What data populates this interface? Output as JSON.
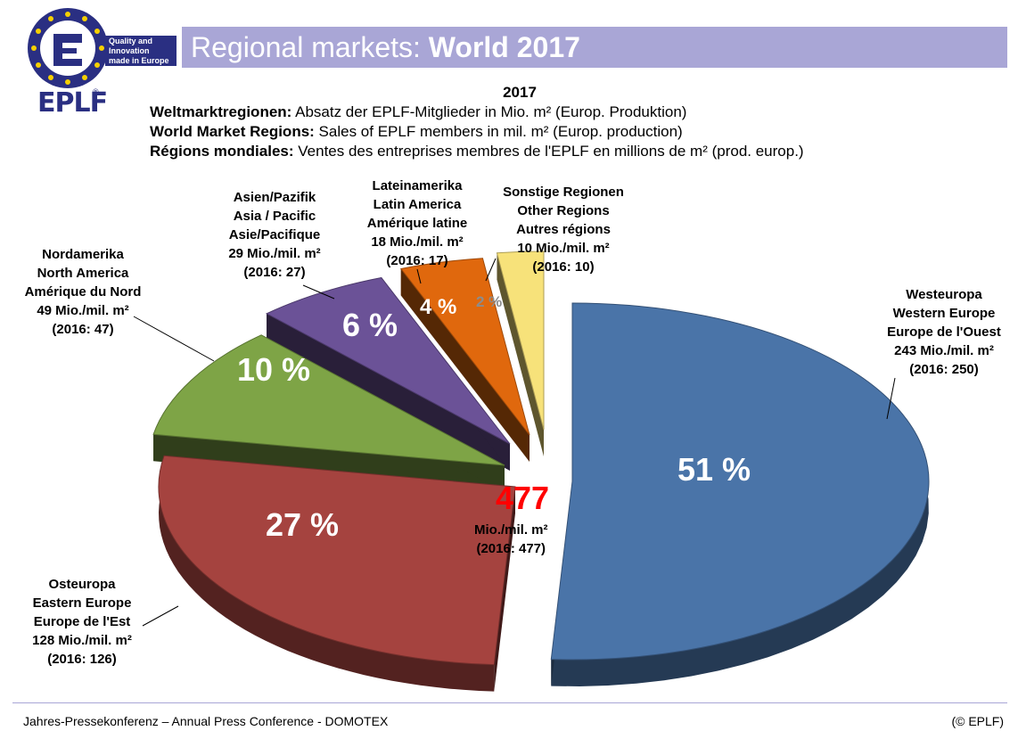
{
  "header": {
    "title_regular": "Regional markets: ",
    "title_bold": "World 2017",
    "tagline": [
      "Quality and",
      "Innovation",
      "made in Europe"
    ],
    "logo_text": "EPLF"
  },
  "subtitles": {
    "year": "2017",
    "de_bold": "Weltmarktregionen:",
    "de_text": " Absatz der EPLF-Mitglieder in Mio. m² (Europ. Produktion)",
    "en_bold": "World Market Regions:",
    "en_text": " Sales of EPLF members in mil. m² (Europ. production)",
    "fr_bold": "Régions mondiales:",
    "fr_text": " Ventes des entreprises membres de l'EPLF en millions de m² (prod. europ.)"
  },
  "chart_data": {
    "type": "pie",
    "title": "2017",
    "unit": "Mio./mil. m²",
    "total": {
      "value": "477",
      "unit": "Mio./mil. m²",
      "previous": "(2016: 477)"
    },
    "slices": [
      {
        "label": [
          "Westeuropa",
          "Western Europe",
          "Europe de l'Ouest"
        ],
        "value": 243,
        "value_text": "243 Mio./mil. m²",
        "previous": "(2016: 250)",
        "percent": "51 %",
        "color": "#4a74a8"
      },
      {
        "label": [
          "Osteuropa",
          "Eastern Europe",
          "Europe de l'Est"
        ],
        "value": 128,
        "value_text": "128 Mio./mil. m²",
        "previous": "(2016: 126)",
        "percent": "27 %",
        "color": "#a5433f"
      },
      {
        "label": [
          "Nordamerika",
          "North America",
          "Amérique du Nord"
        ],
        "value": 49,
        "value_text": "49 Mio./mil. m²",
        "previous": "(2016: 47)",
        "percent": "10 %",
        "color": "#7ea446"
      },
      {
        "label": [
          "Asien/Pazifik",
          "Asia / Pacific",
          "Asie/Pacifique"
        ],
        "value": 29,
        "value_text": "29 Mio./mil. m²",
        "previous": "(2016: 27)",
        "percent": "6 %",
        "color": "#6b5297"
      },
      {
        "label": [
          "Lateinamerika",
          "Latin America",
          "Amérique latine"
        ],
        "value": 18,
        "value_text": "18 Mio./mil. m²",
        "previous": "(2016: 17)",
        "percent": "4 %",
        "color": "#e0680d"
      },
      {
        "label": [
          "Sonstige Regionen",
          "Other Regions",
          "Autres régions"
        ],
        "value": 10,
        "value_text": "10 Mio./mil. m²",
        "previous": "(2016: 10)",
        "percent": "2 %",
        "color": "#f7e27a"
      }
    ]
  },
  "footer": {
    "left": "Jahres-Pressekonferenz – Annual Press Conference - DOMOTEX",
    "right": "(© EPLF)"
  }
}
